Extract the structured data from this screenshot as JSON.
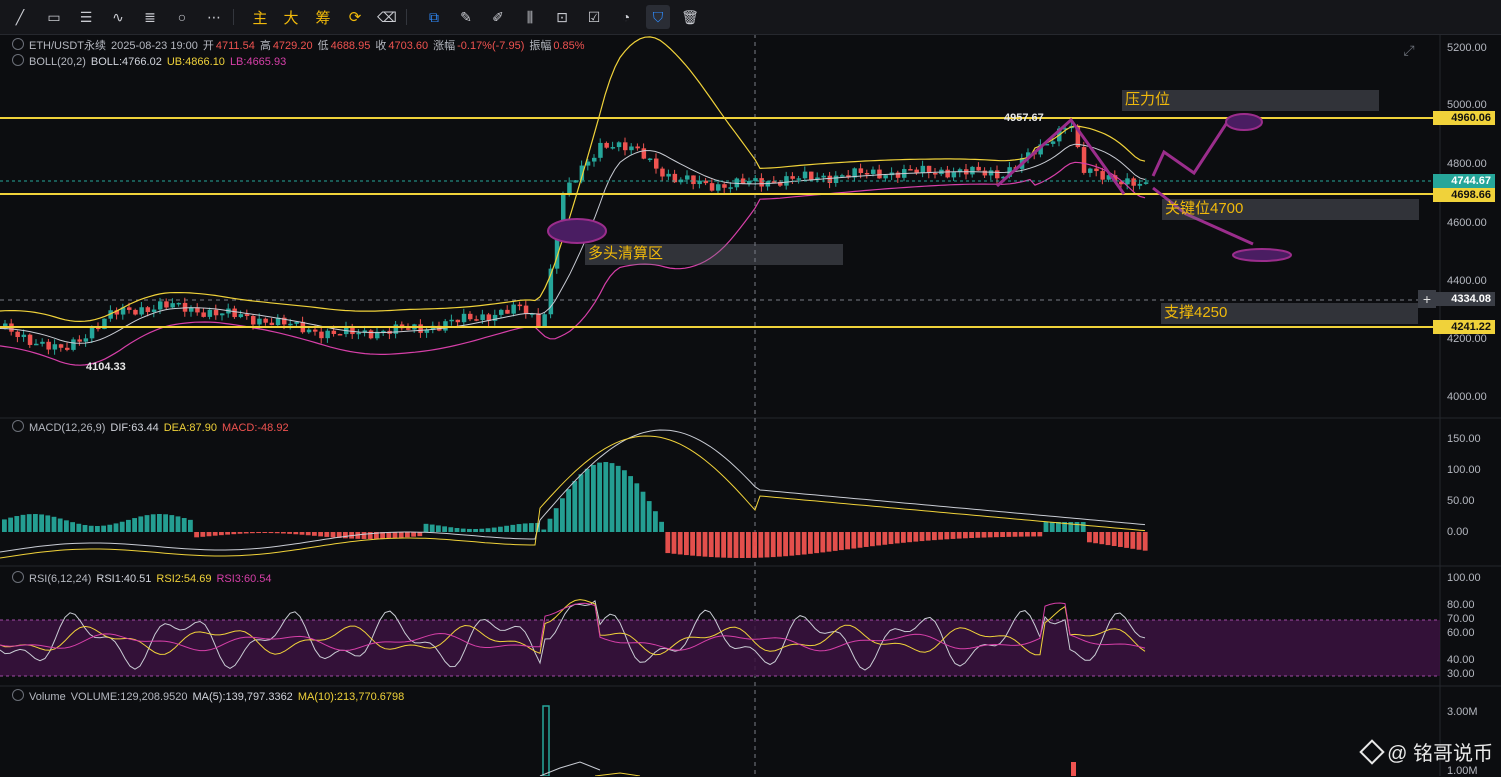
{
  "toolbar": {
    "icons": [
      "trend-line-icon",
      "rectangle-icon",
      "horizontal-lines-icon",
      "wave-icon",
      "fib-icon",
      "circle-icon",
      "more-icon"
    ],
    "text_buttons": [
      "主",
      "大",
      "筹"
    ],
    "icons2": [
      "refresh-icon",
      "eraser-icon"
    ],
    "icons3": [
      "copy-icon",
      "ruler-icon",
      "magnet-icon",
      "bars-icon",
      "lock-icon",
      "note-icon",
      "measure-icon",
      "filter-icon",
      "trash-icon"
    ]
  },
  "main": {
    "symbol": "ETH/USDT永续",
    "datetime": "2025-08-23 19:00",
    "open_label": "开",
    "open": "4711.54",
    "high_label": "高",
    "high": "4729.20",
    "low_label": "低",
    "low": "4688.95",
    "close_label": "收",
    "close": "4703.60",
    "change_label": "涨幅",
    "change": "-0.17%(-7.95)",
    "amp_label": "振幅",
    "amp": "0.85%",
    "boll_name": "BOLL(20,2)",
    "boll": "BOLL:4766.02",
    "ub": "UB:4866.10",
    "lb": "LB:4665.93",
    "high_mark": "4957.67",
    "low_mark": "4104.33"
  },
  "annotations": {
    "resistance": "压力位",
    "key_level": "关键位4700",
    "liquidation": "多头清算区",
    "support": "支撑4250"
  },
  "price_axis": [
    "5200.00",
    "5000.00",
    "4800.00",
    "4600.00",
    "4400.00",
    "4200.00",
    "4000.00"
  ],
  "price_tags": {
    "resistance": "4960.06",
    "current": "4744.67",
    "key": "4698.66",
    "crosshair": "4334.08",
    "support": "4241.22"
  },
  "macd": {
    "name": "MACD(12,26,9)",
    "dif": "DIF:63.44",
    "dea": "DEA:87.90",
    "macd": "MACD:-48.92",
    "axis": [
      "150.00",
      "100.00",
      "50.00",
      "0.00"
    ]
  },
  "rsi": {
    "name": "RSI(6,12,24)",
    "rsi1": "RSI1:40.51",
    "rsi2": "RSI2:54.69",
    "rsi3": "RSI3:60.54",
    "axis": [
      "100.00",
      "80.00",
      "70.00",
      "60.00",
      "40.00",
      "30.00"
    ]
  },
  "volume": {
    "name": "Volume",
    "volume": "VOLUME:129,208.9520",
    "ma5": "MA(5):139,797.3362",
    "ma10": "MA(10):213,770.6798",
    "axis": [
      "3.00M",
      "1.00M"
    ]
  },
  "watermark": "@ 铭哥说币",
  "colors": {
    "up": "#26a69a",
    "down": "#ef5350",
    "yellow": "#f0d23a",
    "magenta": "#d63fa8",
    "purple": "#9b2d8c"
  }
}
